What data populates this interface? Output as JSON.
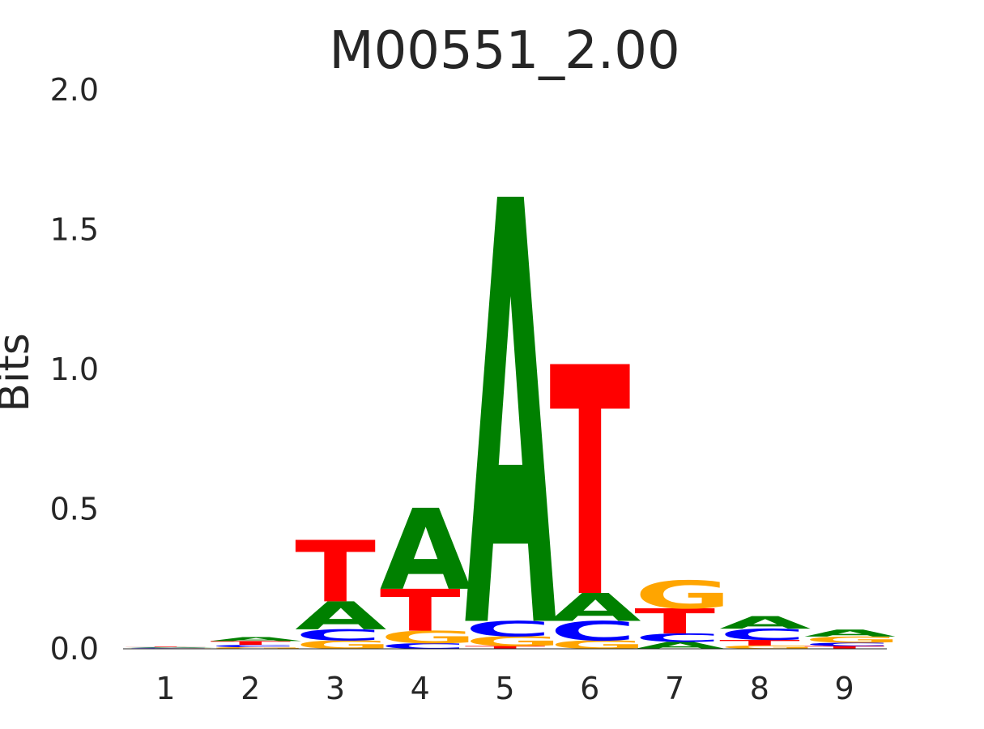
{
  "chart_data": {
    "type": "sequence-logo",
    "title": "M00551_2.00",
    "ylabel": "Bits",
    "xlabel": "",
    "ylim": [
      0,
      2
    ],
    "yticks": [
      "0.0",
      "0.5",
      "1.0",
      "1.5",
      "2.0"
    ],
    "positions": [
      "1",
      "2",
      "3",
      "4",
      "5",
      "6",
      "7",
      "8",
      "9"
    ],
    "colors": {
      "A": "#008000",
      "C": "#0000ff",
      "G": "#ffa500",
      "T": "#ff0000"
    },
    "stacks": [
      [
        {
          "letter": "G",
          "bits": 0.002
        },
        {
          "letter": "C",
          "bits": 0.002
        },
        {
          "letter": "A",
          "bits": 0.002
        },
        {
          "letter": "T",
          "bits": 0.002
        }
      ],
      [
        {
          "letter": "G",
          "bits": 0.006
        },
        {
          "letter": "C",
          "bits": 0.008
        },
        {
          "letter": "T",
          "bits": 0.014
        },
        {
          "letter": "A",
          "bits": 0.014
        }
      ],
      [
        {
          "letter": "G",
          "bits": 0.03
        },
        {
          "letter": "C",
          "bits": 0.04
        },
        {
          "letter": "A",
          "bits": 0.1
        },
        {
          "letter": "T",
          "bits": 0.22
        }
      ],
      [
        {
          "letter": "C",
          "bits": 0.02
        },
        {
          "letter": "G",
          "bits": 0.045
        },
        {
          "letter": "T",
          "bits": 0.15
        },
        {
          "letter": "A",
          "bits": 0.29
        }
      ],
      [
        {
          "letter": "T",
          "bits": 0.01
        },
        {
          "letter": "G",
          "bits": 0.035
        },
        {
          "letter": "C",
          "bits": 0.055
        },
        {
          "letter": "A",
          "bits": 1.52
        }
      ],
      [
        {
          "letter": "G",
          "bits": 0.03
        },
        {
          "letter": "C",
          "bits": 0.07
        },
        {
          "letter": "A",
          "bits": 0.1
        },
        {
          "letter": "T",
          "bits": 0.82
        }
      ],
      [
        {
          "letter": "A",
          "bits": 0.025
        },
        {
          "letter": "C",
          "bits": 0.03
        },
        {
          "letter": "T",
          "bits": 0.09
        },
        {
          "letter": "G",
          "bits": 0.1
        }
      ],
      [
        {
          "letter": "G",
          "bits": 0.012
        },
        {
          "letter": "T",
          "bits": 0.02
        },
        {
          "letter": "C",
          "bits": 0.04
        },
        {
          "letter": "A",
          "bits": 0.045
        }
      ],
      [
        {
          "letter": "T",
          "bits": 0.01
        },
        {
          "letter": "C",
          "bits": 0.012
        },
        {
          "letter": "G",
          "bits": 0.022
        },
        {
          "letter": "A",
          "bits": 0.025
        }
      ]
    ],
    "grid": false,
    "legend": "none"
  }
}
